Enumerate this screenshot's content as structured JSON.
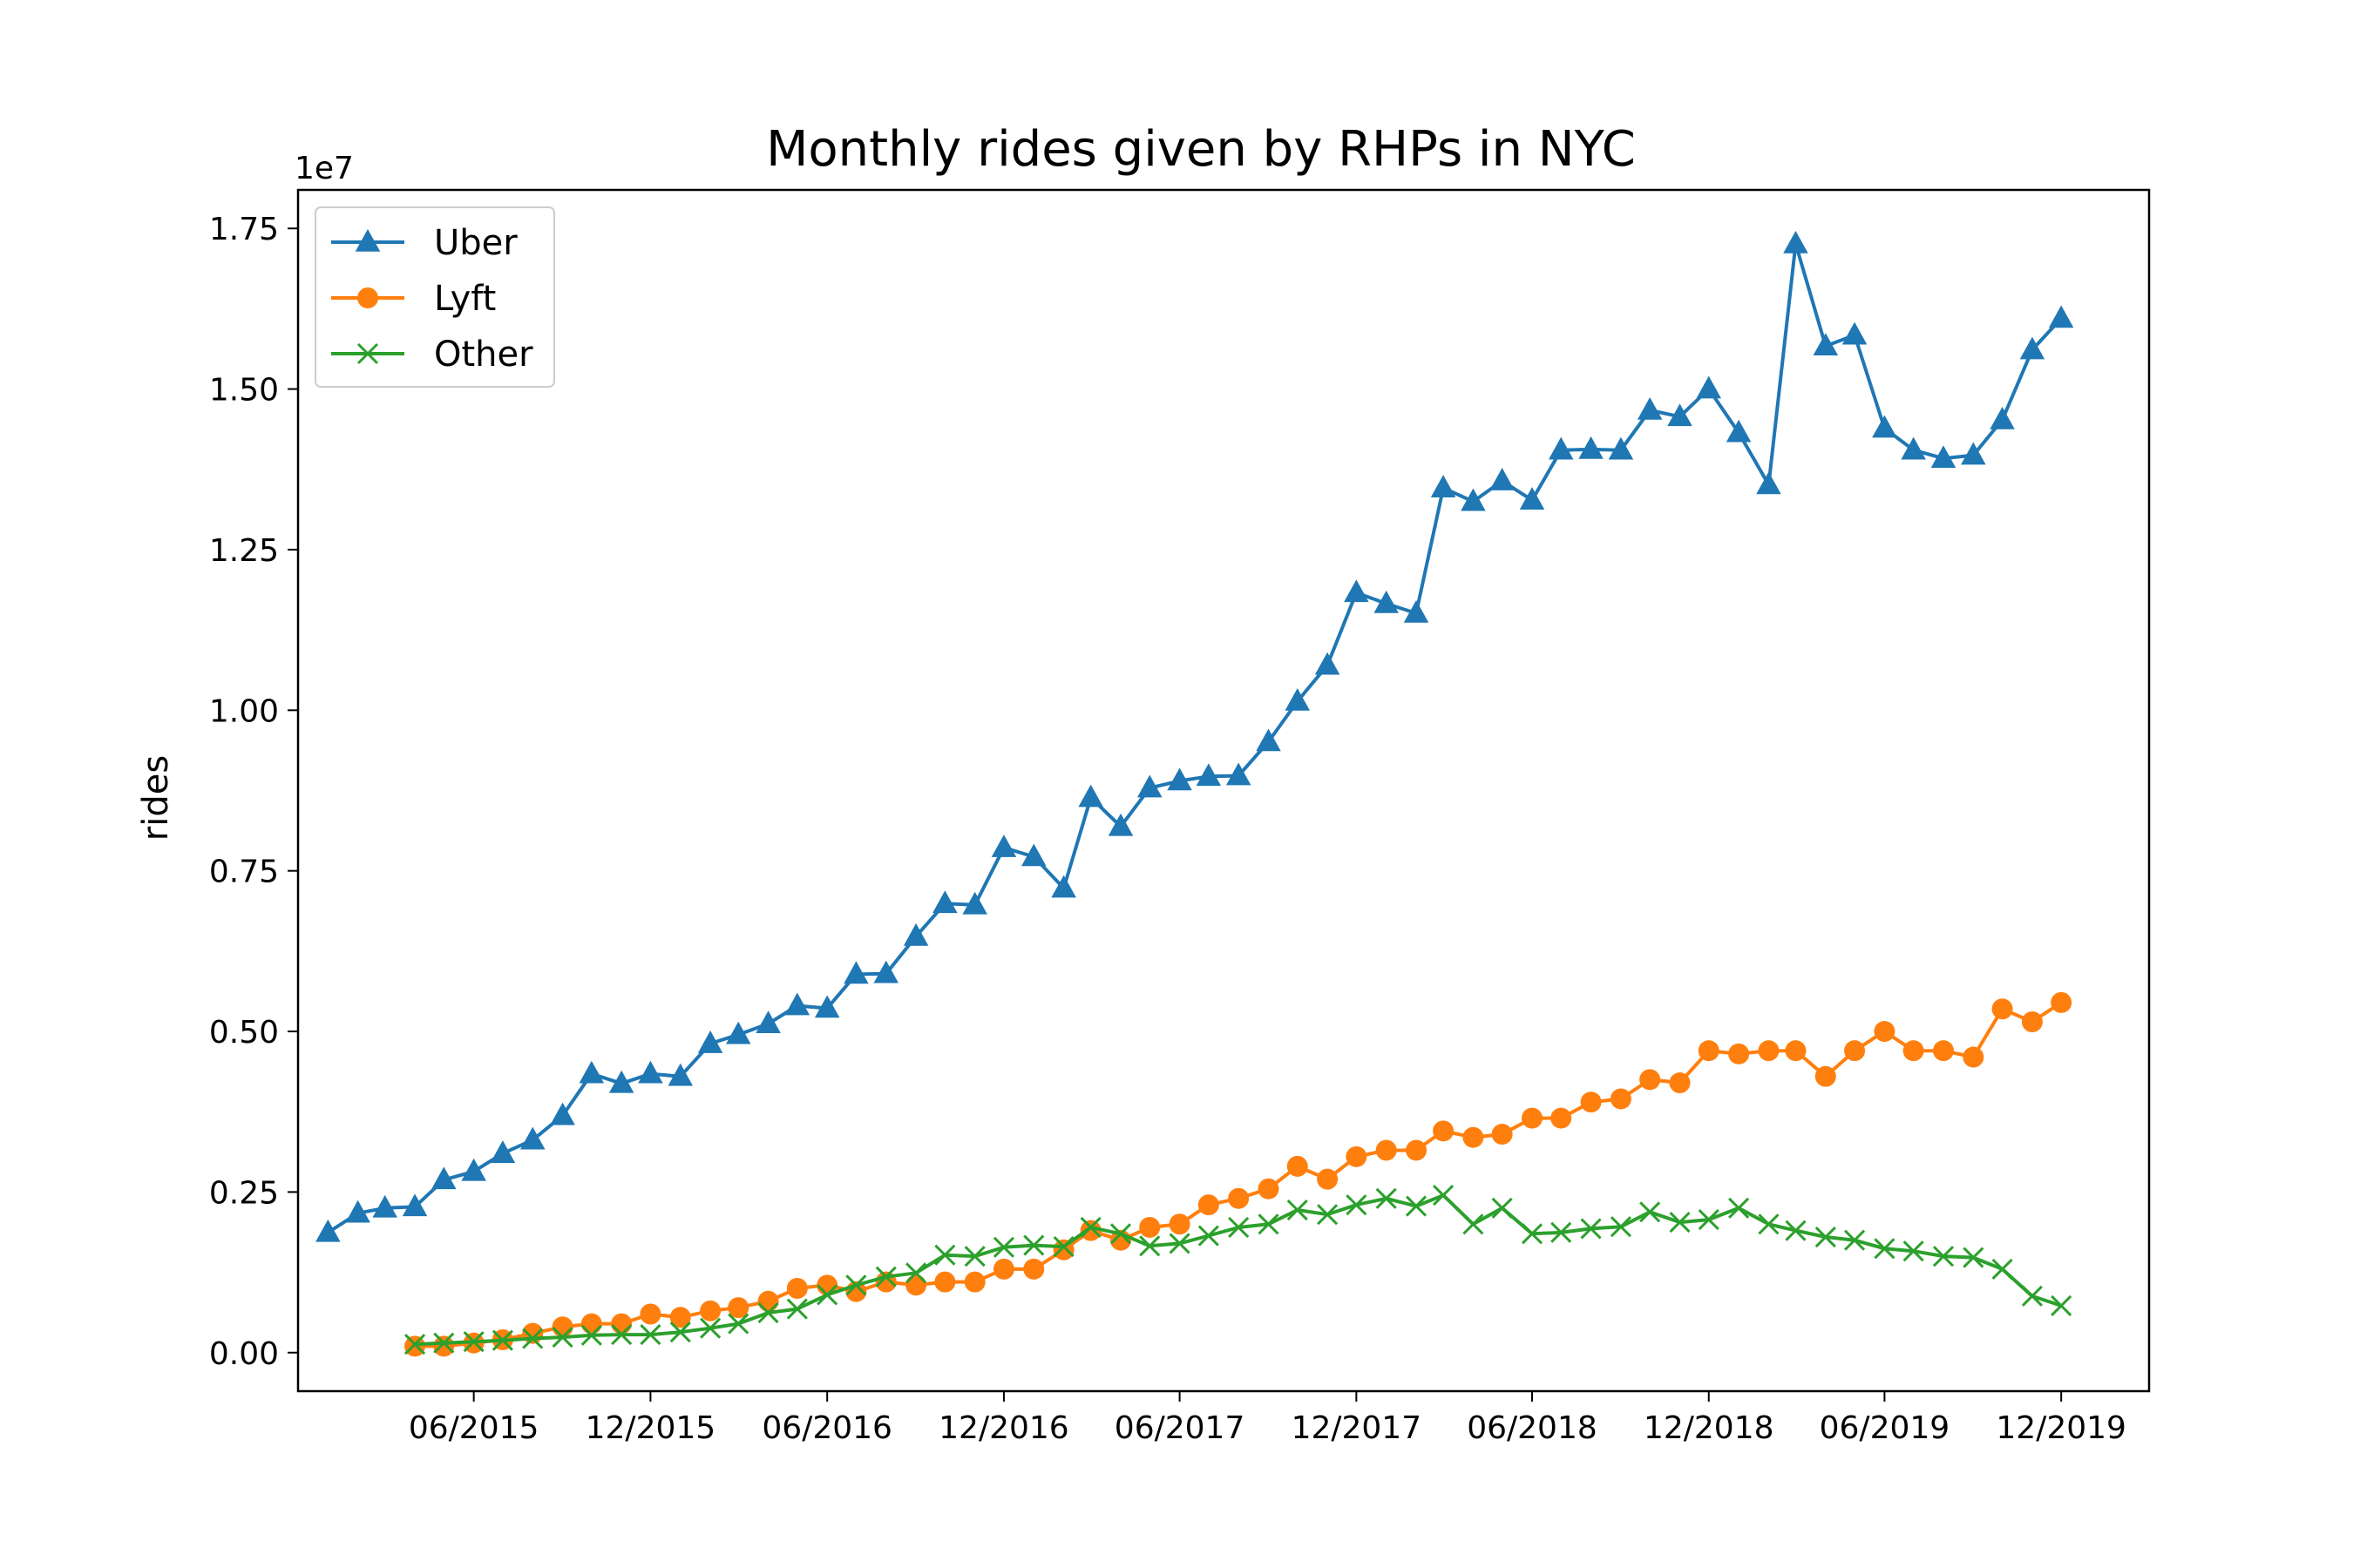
{
  "chart_data": {
    "type": "line",
    "title": "Monthly rides given by RHPs in NYC",
    "xlabel": "",
    "ylabel": "rides",
    "y_offset_label": "1e7",
    "y_multiplier": 10000000,
    "xlim": [
      "2014-12-01",
      "2020-03-01"
    ],
    "ylim": [
      -0.06,
      1.81
    ],
    "x_ticks": [
      {
        "date": "2015-06-01",
        "label": "06/2015"
      },
      {
        "date": "2015-12-01",
        "label": "12/2015"
      },
      {
        "date": "2016-06-01",
        "label": "06/2016"
      },
      {
        "date": "2016-12-01",
        "label": "12/2016"
      },
      {
        "date": "2017-06-01",
        "label": "06/2017"
      },
      {
        "date": "2017-12-01",
        "label": "12/2017"
      },
      {
        "date": "2018-06-01",
        "label": "06/2018"
      },
      {
        "date": "2018-12-01",
        "label": "12/2018"
      },
      {
        "date": "2019-06-01",
        "label": "06/2019"
      },
      {
        "date": "2019-12-01",
        "label": "12/2019"
      }
    ],
    "y_ticks": [
      {
        "value": 0.0,
        "label": "0.00"
      },
      {
        "value": 0.25,
        "label": "0.25"
      },
      {
        "value": 0.5,
        "label": "0.50"
      },
      {
        "value": 0.75,
        "label": "0.75"
      },
      {
        "value": 1.0,
        "label": "1.00"
      },
      {
        "value": 1.25,
        "label": "1.25"
      },
      {
        "value": 1.5,
        "label": "1.50"
      },
      {
        "value": 1.75,
        "label": "1.75"
      }
    ],
    "grid": false,
    "legend_position": "upper left",
    "series": [
      {
        "name": "Uber",
        "color": "#1f77b4",
        "marker": "triangle",
        "start": "2015-01",
        "values": [
          0.187,
          0.217,
          0.225,
          0.227,
          0.269,
          0.282,
          0.31,
          0.331,
          0.369,
          0.434,
          0.419,
          0.434,
          0.43,
          0.481,
          0.495,
          0.512,
          0.54,
          0.536,
          0.589,
          0.59,
          0.648,
          0.699,
          0.697,
          0.786,
          0.772,
          0.723,
          0.864,
          0.819,
          0.879,
          0.89,
          0.897,
          0.898,
          0.951,
          1.014,
          1.07,
          1.183,
          1.166,
          1.151,
          1.346,
          1.325,
          1.357,
          1.327,
          1.405,
          1.406,
          1.405,
          1.467,
          1.457,
          1.5,
          1.432,
          1.351,
          1.726,
          1.567,
          1.584,
          1.439,
          1.405,
          1.392,
          1.397,
          1.452,
          1.561,
          1.61
        ]
      },
      {
        "name": "Lyft",
        "color": "#ff7f0e",
        "marker": "circle",
        "start": "2015-04",
        "values": [
          0.01,
          0.01,
          0.015,
          0.02,
          0.03,
          0.04,
          0.045,
          0.045,
          0.06,
          0.055,
          0.065,
          0.07,
          0.08,
          0.1,
          0.105,
          0.095,
          0.11,
          0.105,
          0.11,
          0.11,
          0.13,
          0.13,
          0.16,
          0.19,
          0.175,
          0.195,
          0.2,
          0.23,
          0.24,
          0.255,
          0.29,
          0.27,
          0.305,
          0.315,
          0.315,
          0.345,
          0.335,
          0.34,
          0.365,
          0.365,
          0.39,
          0.395,
          0.425,
          0.42,
          0.47,
          0.465,
          0.47,
          0.47,
          0.43,
          0.47,
          0.5,
          0.47,
          0.47,
          0.46,
          0.535,
          0.515,
          0.545
        ]
      },
      {
        "name": "Other",
        "color": "#2ca02c",
        "marker": "x",
        "start": "2015-04",
        "values": [
          0.013,
          0.015,
          0.017,
          0.019,
          0.022,
          0.024,
          0.027,
          0.028,
          0.028,
          0.032,
          0.038,
          0.045,
          0.062,
          0.068,
          0.09,
          0.105,
          0.118,
          0.124,
          0.152,
          0.15,
          0.164,
          0.167,
          0.165,
          0.195,
          0.185,
          0.166,
          0.17,
          0.182,
          0.195,
          0.2,
          0.222,
          0.215,
          0.23,
          0.24,
          0.228,
          0.245,
          0.2,
          0.225,
          0.185,
          0.187,
          0.193,
          0.196,
          0.219,
          0.203,
          0.207,
          0.225,
          0.2,
          0.19,
          0.18,
          0.175,
          0.162,
          0.158,
          0.15,
          0.148,
          0.13,
          0.088,
          0.073
        ]
      }
    ]
  }
}
